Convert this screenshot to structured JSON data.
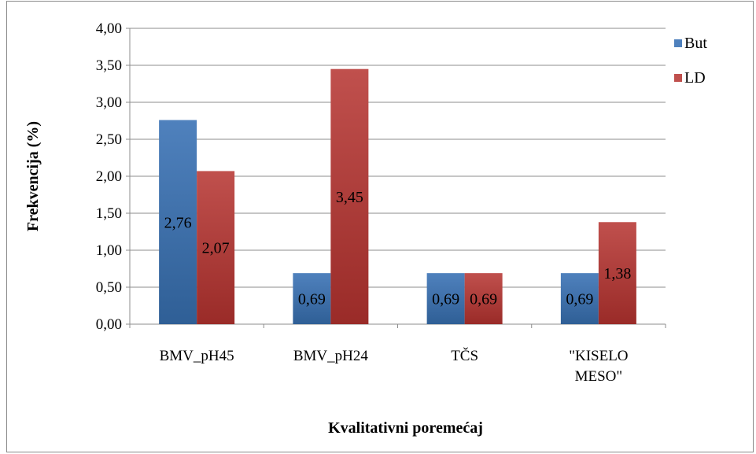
{
  "chart_data": {
    "type": "bar",
    "title": "",
    "xlabel": "Kvalitativni poremećaj",
    "ylabel": "Frekvencija (%)",
    "categories": [
      "BMV_pH45",
      "BMV_pH24",
      "TČS",
      "\"KISELO MESO\""
    ],
    "category_lines": [
      [
        "BMV_pH45"
      ],
      [
        "BMV_pH24"
      ],
      [
        "TČS"
      ],
      [
        "\"KISELO",
        "MESO\""
      ]
    ],
    "series": [
      {
        "name": "But",
        "values": [
          2.76,
          0.69,
          0.69,
          0.69
        ],
        "labels": [
          "2,76",
          "0,69",
          "0,69",
          "0,69"
        ],
        "color": "#4f81bd"
      },
      {
        "name": "LD",
        "values": [
          2.07,
          3.45,
          0.69,
          1.38
        ],
        "labels": [
          "2,07",
          "3,45",
          "0,69",
          "1,38"
        ],
        "color": "#c0504d"
      }
    ],
    "ylim": [
      0,
      4
    ],
    "yticks": [
      0,
      0.5,
      1,
      1.5,
      2,
      2.5,
      3,
      3.5,
      4
    ],
    "ytick_labels": [
      "0,00",
      "0,50",
      "1,00",
      "1,50",
      "2,00",
      "2,50",
      "3,00",
      "3,50",
      "4,00"
    ],
    "grid": true,
    "legend": "right"
  }
}
